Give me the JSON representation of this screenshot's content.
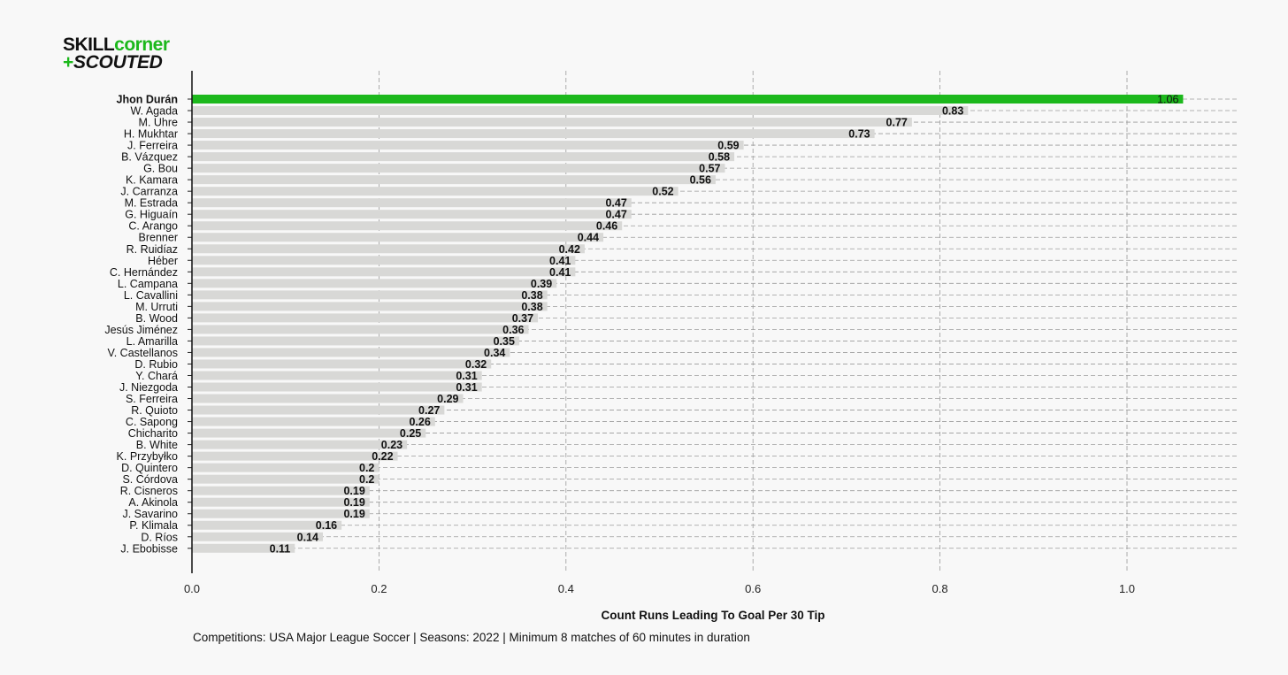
{
  "logo": {
    "brand_a": "SKILL",
    "brand_b": "corner",
    "plus": "+",
    "brand_c": "SCOUTED"
  },
  "footnote": "Competitions: USA Major League Soccer | Seasons: 2022 | Minimum 8 matches of 60 minutes in duration",
  "colors": {
    "highlight": "#1cb81c",
    "bar": "#d8d8d6",
    "grid": "#9a9a9a",
    "background": "#f8f8f8"
  },
  "chart_data": {
    "type": "bar",
    "orientation": "horizontal",
    "xlabel": "Count Runs Leading To Goal Per 30 Tip",
    "xlim": [
      0,
      1.1
    ],
    "xticks": [
      "0.0",
      "0.2",
      "0.4",
      "0.6",
      "0.8",
      "1.0"
    ],
    "grid": true,
    "highlighted": "Jhon Durán",
    "categories": [
      "Jhon Durán",
      "W. Agada",
      "M. Uhre",
      "H. Mukhtar",
      "J. Ferreira",
      "B. Vázquez",
      "G. Bou",
      "K. Kamara",
      "J. Carranza",
      "M. Estrada",
      "G. Higuaín",
      "C. Arango",
      "Brenner",
      "R. Ruidíaz",
      "Héber",
      "C. Hernández",
      "L. Campana",
      "L. Cavallini",
      "M. Urruti",
      "B. Wood",
      "Jesús Jiménez",
      "L. Amarilla",
      "V. Castellanos",
      "D. Rubio",
      "Y. Chará",
      "J. Niezgoda",
      "S. Ferreira",
      "R. Quioto",
      "C. Sapong",
      "Chicharito",
      "B. White",
      "K. Przybyłko",
      "D. Quintero",
      "S. Córdova",
      "R. Cisneros",
      "A. Akinola",
      "J. Savarino",
      "P. Klimala",
      "D. Ríos",
      "J. Ebobisse"
    ],
    "values": [
      1.06,
      0.83,
      0.77,
      0.73,
      0.59,
      0.58,
      0.57,
      0.56,
      0.52,
      0.47,
      0.47,
      0.46,
      0.44,
      0.42,
      0.41,
      0.41,
      0.39,
      0.38,
      0.38,
      0.37,
      0.36,
      0.35,
      0.34,
      0.32,
      0.31,
      0.31,
      0.29,
      0.27,
      0.26,
      0.25,
      0.23,
      0.22,
      0.2,
      0.2,
      0.19,
      0.19,
      0.19,
      0.16,
      0.14,
      0.11
    ]
  }
}
